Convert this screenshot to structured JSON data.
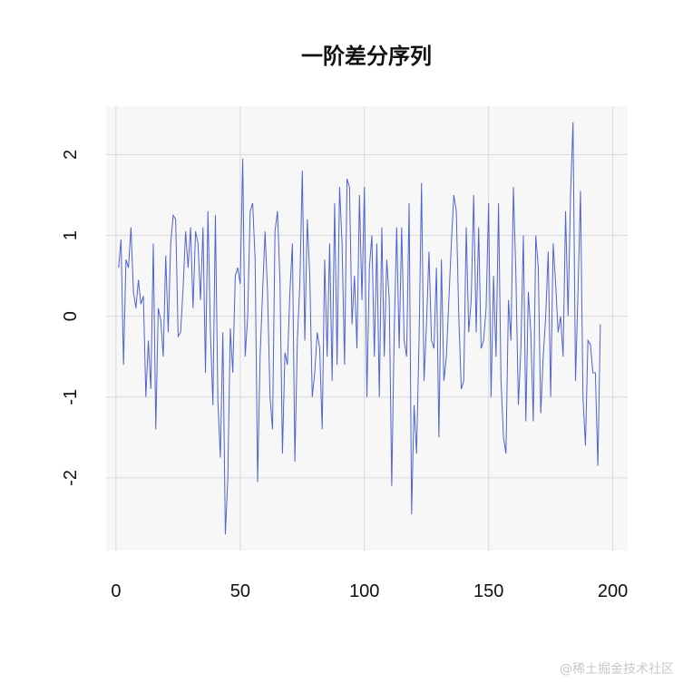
{
  "chart_data": {
    "type": "line",
    "title": "一阶差分序列",
    "xlabel": "",
    "ylabel": "",
    "xlim": [
      -4,
      206
    ],
    "ylim": [
      -2.9,
      2.6
    ],
    "xticks": [
      0,
      50,
      100,
      150,
      200
    ],
    "xtick_labels": [
      "0",
      "50",
      "100",
      "150",
      "200"
    ],
    "yticks": [
      -2,
      -1,
      0,
      1,
      2
    ],
    "ytick_labels": [
      "-2",
      "-1",
      "0",
      "1",
      "2"
    ],
    "grid": true,
    "legend": "none",
    "colors": {
      "line": "#4f63d2",
      "panel": "#f7f7f7",
      "grid": "#d9d9d9"
    },
    "series": [
      {
        "values": [
          0.6,
          0.95,
          -0.6,
          0.7,
          0.6,
          1.1,
          0.3,
          0.1,
          0.45,
          0.15,
          0.25,
          -1.0,
          -0.3,
          -0.9,
          0.9,
          -1.4,
          0.1,
          -0.05,
          -0.5,
          0.75,
          -0.2,
          0.9,
          1.25,
          1.2,
          -0.25,
          -0.2,
          0.35,
          1.05,
          0.6,
          1.1,
          0.1,
          1.05,
          0.9,
          0.2,
          1.1,
          -0.7,
          1.3,
          -0.2,
          -1.1,
          1.25,
          -1.05,
          -1.75,
          -0.2,
          -2.7,
          -2.0,
          -0.15,
          -0.7,
          0.5,
          0.6,
          0.4,
          1.95,
          -0.5,
          0.0,
          1.3,
          1.4,
          0.7,
          -2.05,
          -0.5,
          0.3,
          1.05,
          0.3,
          -1.0,
          -1.4,
          1.05,
          1.3,
          0.45,
          -1.7,
          -0.45,
          -0.6,
          0.3,
          0.9,
          -1.8,
          -0.3,
          0.4,
          1.8,
          -0.3,
          1.2,
          0.5,
          -1.0,
          -0.7,
          -0.2,
          -0.4,
          -1.4,
          0.7,
          -0.5,
          0.9,
          -0.8,
          1.4,
          -0.6,
          1.6,
          0.9,
          -0.6,
          1.7,
          1.6,
          -0.1,
          0.5,
          -0.4,
          1.5,
          0.2,
          1.6,
          -1.0,
          0.6,
          1.0,
          -0.5,
          0.9,
          -1.0,
          1.1,
          -0.5,
          0.7,
          0.2,
          -2.1,
          -0.2,
          1.1,
          -0.4,
          1.1,
          -0.3,
          -0.5,
          1.4,
          -2.45,
          -1.1,
          -1.7,
          -0.3,
          1.65,
          -0.8,
          -0.1,
          0.8,
          -0.3,
          -0.4,
          0.6,
          -1.5,
          0.7,
          -0.8,
          -0.5,
          0.2,
          0.9,
          1.5,
          1.3,
          0.0,
          -0.9,
          -0.8,
          1.1,
          -0.2,
          0.2,
          1.5,
          -0.2,
          1.1,
          -0.4,
          -0.3,
          0.1,
          1.4,
          -1.0,
          0.5,
          -0.5,
          1.4,
          -0.8,
          -1.5,
          -1.7,
          0.2,
          -0.3,
          1.6,
          0.5,
          -1.1,
          -0.4,
          1.0,
          -1.3,
          0.3,
          -0.2,
          -1.3,
          1.0,
          0.6,
          -1.2,
          -0.5,
          0.0,
          0.8,
          -1.0,
          0.9,
          0.4,
          -0.2,
          0.0,
          -0.5,
          1.3,
          0.0,
          1.5,
          2.4,
          -0.8,
          0.3,
          1.55,
          -1.0,
          -1.6,
          -0.3,
          -0.35,
          -0.7,
          -0.7,
          -1.85,
          -0.1
        ]
      }
    ]
  },
  "watermark": "@稀土掘金技术社区"
}
